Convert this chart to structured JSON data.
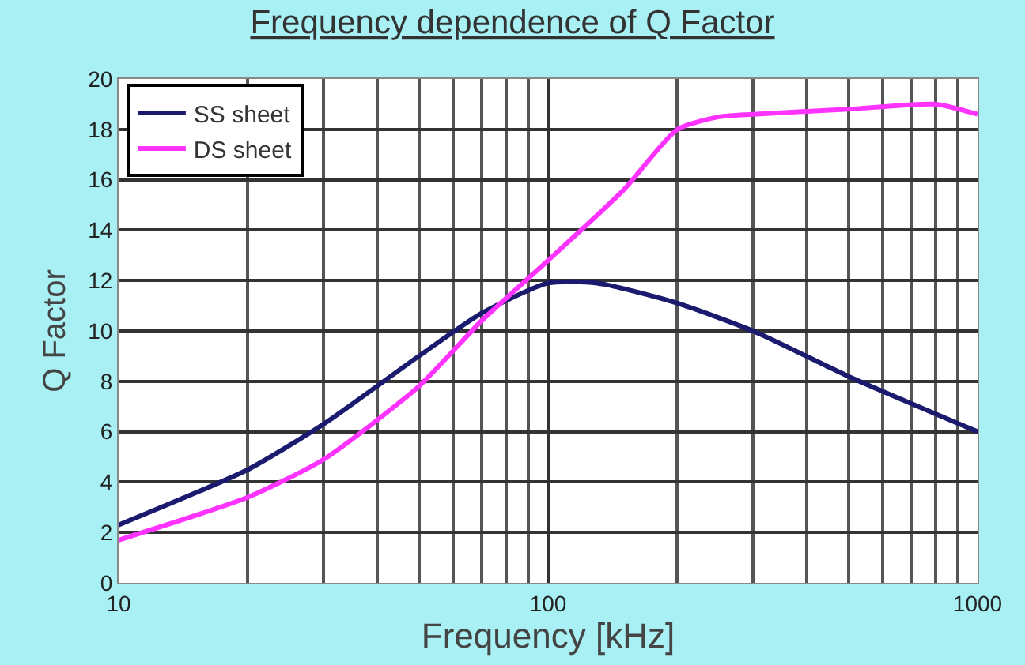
{
  "chart_data": {
    "type": "line",
    "title": "Frequency dependence of Q Factor",
    "xlabel": "Frequency [kHz]",
    "ylabel": "Q Factor",
    "log": "x",
    "xlim": [
      10,
      1000
    ],
    "xticks": [
      10,
      100,
      1000
    ],
    "ylim": [
      0,
      20
    ],
    "yticks": [
      0,
      2,
      4,
      6,
      8,
      10,
      12,
      14,
      16,
      18,
      20
    ],
    "grid": true,
    "legend": "top left",
    "marker": "none",
    "line_style": "solid",
    "series": [
      {
        "name": "SS sheet",
        "color": "#1a1a6e",
        "x": [
          10,
          20,
          30,
          50,
          70,
          100,
          130,
          200,
          300,
          500,
          1000
        ],
        "values": [
          2.3,
          4.5,
          6.3,
          9.0,
          10.7,
          11.9,
          11.9,
          11.1,
          10.0,
          8.2,
          6.0
        ]
      },
      {
        "name": "DS sheet",
        "color": "#ff33ff",
        "x": [
          10,
          20,
          30,
          50,
          70,
          100,
          150,
          200,
          250,
          300,
          500,
          800,
          1000
        ],
        "values": [
          1.7,
          3.4,
          4.9,
          7.8,
          10.4,
          12.8,
          15.6,
          18.0,
          18.5,
          18.6,
          18.8,
          19.0,
          18.6
        ]
      }
    ]
  }
}
